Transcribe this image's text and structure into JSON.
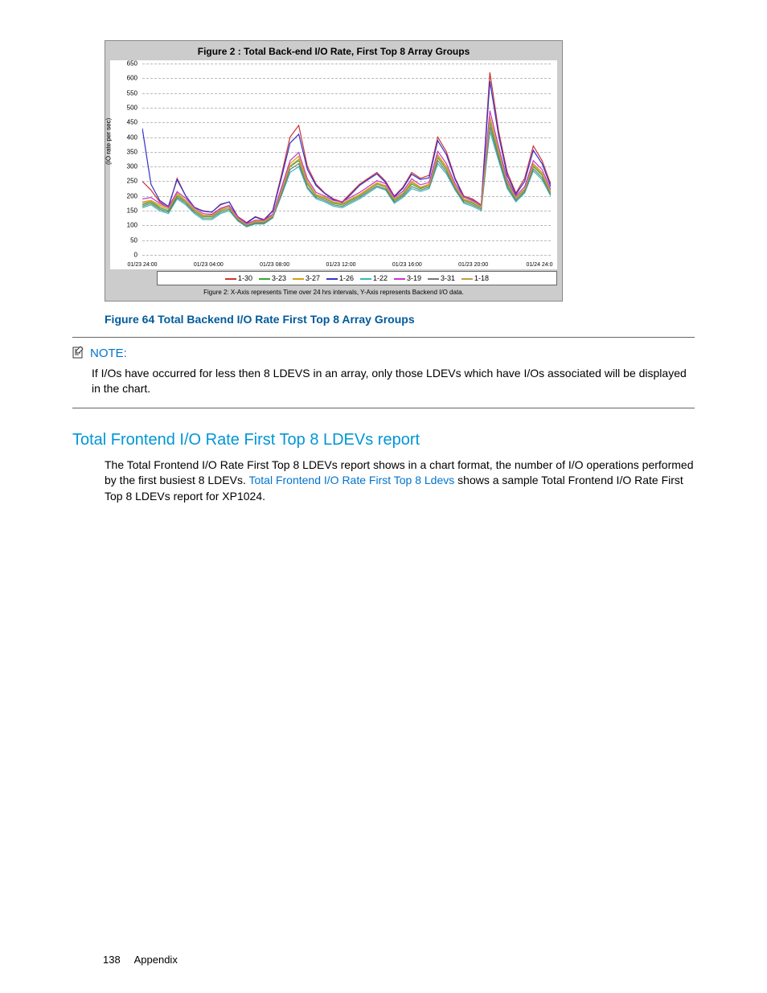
{
  "chart": {
    "type": "line",
    "title": "Figure 2 : Total Back-end I/O Rate, First Top 8 Array Groups",
    "ylabel": "(IO rate per sec)",
    "ylim": [
      0,
      650
    ],
    "ytick_step": 50,
    "yticks": [
      0,
      50,
      100,
      150,
      200,
      250,
      300,
      350,
      400,
      450,
      500,
      550,
      600,
      650
    ],
    "xticks": [
      "01/23 24:00",
      "01/23 04:00",
      "01/23 08:00",
      "01/23 12:00",
      "01/23 16:00",
      "01/23 20:00",
      "01/24 24:0"
    ],
    "background_color": "#cccccc",
    "plot_background": "#ffffff",
    "grid_color": "#bbbbbb",
    "title_fontsize": 12,
    "tick_fontsize": 8,
    "series": [
      {
        "name": "1-30",
        "color": "#cc3333",
        "values": [
          250,
          220,
          180,
          160,
          260,
          200,
          160,
          150,
          145,
          170,
          180,
          130,
          110,
          130,
          120,
          150,
          270,
          400,
          440,
          300,
          240,
          210,
          190,
          180,
          210,
          240,
          260,
          280,
          250,
          200,
          230,
          280,
          260,
          270,
          400,
          350,
          260,
          200,
          190,
          170,
          620,
          420,
          280,
          210,
          260,
          370,
          320,
          240
        ]
      },
      {
        "name": "3-23",
        "color": "#33aa33",
        "values": [
          170,
          180,
          160,
          150,
          200,
          180,
          150,
          130,
          130,
          150,
          160,
          120,
          100,
          110,
          110,
          130,
          210,
          300,
          320,
          240,
          200,
          190,
          175,
          170,
          185,
          200,
          220,
          240,
          230,
          185,
          205,
          240,
          225,
          235,
          330,
          290,
          230,
          185,
          175,
          160,
          450,
          340,
          240,
          190,
          220,
          300,
          270,
          210
        ]
      },
      {
        "name": "3-27",
        "color": "#d4a017",
        "values": [
          180,
          185,
          170,
          160,
          210,
          185,
          155,
          135,
          135,
          155,
          165,
          125,
          105,
          115,
          115,
          135,
          220,
          310,
          335,
          250,
          205,
          195,
          180,
          175,
          190,
          205,
          225,
          245,
          235,
          190,
          210,
          250,
          230,
          240,
          340,
          300,
          235,
          190,
          180,
          165,
          470,
          355,
          250,
          195,
          225,
          310,
          280,
          215
        ]
      },
      {
        "name": "1-26",
        "color": "#3333cc",
        "values": [
          430,
          240,
          185,
          165,
          255,
          200,
          162,
          148,
          145,
          172,
          180,
          128,
          108,
          128,
          118,
          148,
          260,
          380,
          410,
          290,
          235,
          208,
          188,
          178,
          205,
          236,
          256,
          275,
          246,
          198,
          226,
          274,
          256,
          262,
          388,
          340,
          256,
          196,
          186,
          168,
          590,
          405,
          270,
          205,
          250,
          355,
          310,
          232
        ]
      },
      {
        "name": "1-22",
        "color": "#33bbbb",
        "values": [
          160,
          170,
          150,
          140,
          190,
          170,
          140,
          120,
          120,
          140,
          150,
          115,
          95,
          105,
          105,
          125,
          200,
          280,
          300,
          225,
          190,
          180,
          165,
          160,
          175,
          190,
          210,
          230,
          220,
          175,
          195,
          225,
          215,
          225,
          310,
          275,
          220,
          175,
          165,
          150,
          420,
          320,
          225,
          180,
          210,
          285,
          255,
          200
        ]
      },
      {
        "name": "3-19",
        "color": "#cc33cc",
        "values": [
          190,
          195,
          175,
          162,
          215,
          192,
          160,
          140,
          138,
          158,
          168,
          128,
          106,
          118,
          118,
          138,
          228,
          320,
          348,
          258,
          212,
          200,
          185,
          180,
          196,
          212,
          232,
          252,
          242,
          195,
          216,
          258,
          238,
          246,
          352,
          310,
          242,
          196,
          184,
          170,
          490,
          368,
          256,
          200,
          232,
          320,
          290,
          222
        ]
      },
      {
        "name": "3-31",
        "color": "#777777",
        "values": [
          165,
          175,
          155,
          145,
          195,
          175,
          145,
          125,
          125,
          145,
          155,
          118,
          98,
          108,
          108,
          128,
          205,
          290,
          310,
          230,
          195,
          185,
          170,
          165,
          180,
          195,
          215,
          234,
          224,
          180,
          200,
          232,
          220,
          230,
          320,
          282,
          225,
          180,
          170,
          155,
          435,
          330,
          232,
          185,
          215,
          292,
          262,
          205
        ]
      },
      {
        "name": "1-18",
        "color": "#c0a040",
        "values": [
          175,
          182,
          165,
          155,
          205,
          182,
          152,
          132,
          132,
          152,
          160,
          122,
          102,
          112,
          112,
          132,
          215,
          302,
          325,
          244,
          202,
          192,
          178,
          172,
          188,
          202,
          222,
          242,
          232,
          188,
          208,
          245,
          228,
          236,
          334,
          294,
          232,
          188,
          178,
          162,
          460,
          348,
          246,
          192,
          222,
          305,
          275,
          212
        ]
      }
    ],
    "footnote": "Figure 2: X-Axis represents Time over 24 hrs intervals, Y-Axis represents Backend I/O data."
  },
  "figure_caption": "Figure 64 Total Backend I/O Rate First Top 8 Array Groups",
  "note": {
    "label": "NOTE:",
    "text": "If I/Os have occurred for less then 8 LDEVS in an array, only those LDEVs which have I/Os associated will be displayed in the chart."
  },
  "section": {
    "heading": "Total Frontend I/O Rate First Top 8 LDEVs report",
    "body_pre": "The Total Frontend I/O Rate First Top 8 LDEVs report shows in a chart format, the number of I/O operations performed by the first busiest 8 LDEVs. ",
    "link": "Total Frontend I/O Rate First Top 8 Ldevs",
    "body_post": " shows a sample Total Frontend I/O Rate First Top 8 LDEVs report for XP1024."
  },
  "footer": {
    "page": "138",
    "label": "Appendix"
  }
}
